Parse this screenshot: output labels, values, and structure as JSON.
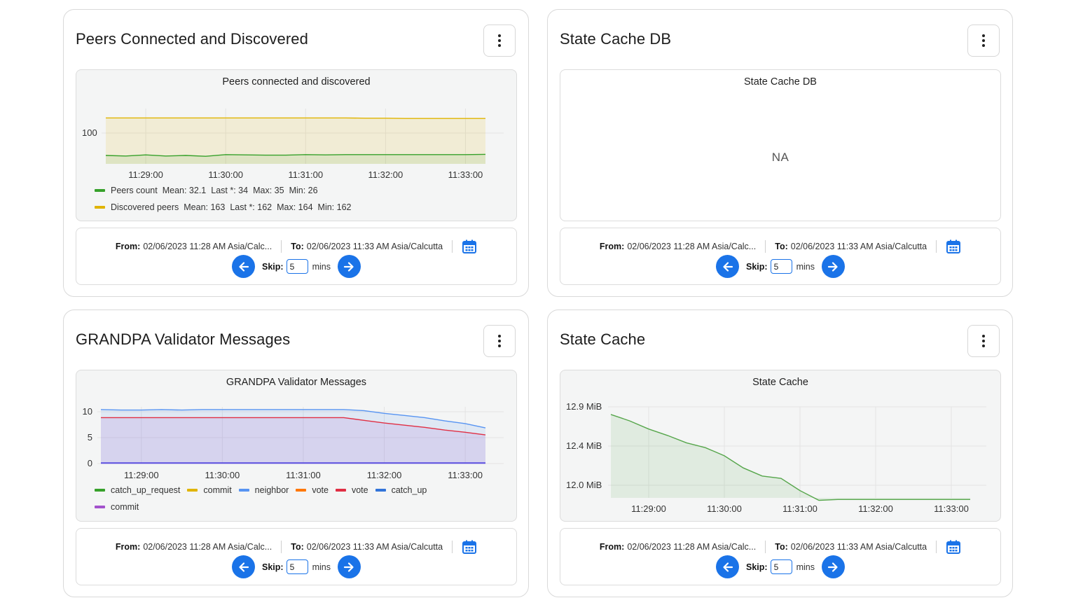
{
  "cards": [
    {
      "title": "Peers Connected and Discovered",
      "chart_title": "Peers connected and discovered",
      "legend": [
        {
          "name": "Peers count",
          "color": "#37a12b",
          "stats": [
            "Mean: 32.1",
            "Last *: 34",
            "Max: 35",
            "Min: 26"
          ]
        },
        {
          "name": "Discovered peers",
          "color": "#e0b400",
          "stats": [
            "Mean: 163",
            "Last *: 162",
            "Max: 164",
            "Min: 162"
          ]
        }
      ]
    },
    {
      "title": "State Cache DB",
      "chart_title": "State Cache DB",
      "na": "NA"
    },
    {
      "title": "GRANDPA Validator Messages",
      "chart_title": "GRANDPA Validator Messages",
      "legend": [
        {
          "name": "catch_up_request",
          "color": "#37a12b"
        },
        {
          "name": "commit",
          "color": "#e0b400"
        },
        {
          "name": "neighbor",
          "color": "#5794f2"
        },
        {
          "name": "vote",
          "color": "#ff780a"
        },
        {
          "name": "vote",
          "color": "#e02f44"
        },
        {
          "name": "catch_up",
          "color": "#3274d9"
        },
        {
          "name": "commit",
          "color": "#a352cc"
        }
      ]
    },
    {
      "title": "State Cache",
      "chart_title": "State Cache"
    }
  ],
  "time_controls": {
    "from_label": "From:",
    "from_value": "02/06/2023 11:28 AM Asia/Calc...",
    "to_label": "To:",
    "to_value": "02/06/2023 11:33 AM Asia/Calcutta",
    "skip_label": "Skip:",
    "skip_value": "5",
    "mins_label": "mins"
  },
  "chart_data": [
    {
      "type": "area",
      "title": "Peers connected and discovered",
      "x": [
        "11:28:30",
        "11:28:45",
        "11:29:00",
        "11:29:15",
        "11:29:30",
        "11:29:45",
        "11:30:00",
        "11:30:15",
        "11:30:30",
        "11:30:45",
        "11:31:00",
        "11:31:15",
        "11:31:30",
        "11:31:45",
        "11:32:00",
        "11:32:15",
        "11:32:30",
        "11:32:45",
        "11:33:00",
        "11:33:15"
      ],
      "x_ticks": [
        "11:29:00",
        "11:30:00",
        "11:31:00",
        "11:32:00",
        "11:33:00"
      ],
      "y_ticks": [
        "100"
      ],
      "ylim": [
        0,
        190
      ],
      "series": [
        {
          "name": "Peers count",
          "values": [
            30,
            28,
            32,
            28,
            30,
            27,
            33,
            32,
            31,
            31,
            33,
            32,
            33,
            33,
            33,
            33,
            33,
            33,
            33,
            34
          ]
        },
        {
          "name": "Discovered peers",
          "values": [
            164,
            164,
            164,
            164,
            164,
            164,
            164,
            164,
            164,
            164,
            164,
            164,
            164,
            163,
            163,
            162,
            162,
            162,
            162,
            162
          ]
        }
      ]
    },
    {
      "type": "area",
      "title": "GRANDPA Validator Messages",
      "x": [
        "11:28:30",
        "11:28:45",
        "11:29:00",
        "11:29:15",
        "11:29:30",
        "11:29:45",
        "11:30:00",
        "11:30:15",
        "11:30:30",
        "11:30:45",
        "11:31:00",
        "11:31:15",
        "11:31:30",
        "11:31:45",
        "11:32:00",
        "11:32:15",
        "11:32:30",
        "11:32:45",
        "11:33:00",
        "11:33:15"
      ],
      "x_ticks": [
        "11:29:00",
        "11:30:00",
        "11:31:00",
        "11:32:00",
        "11:33:00"
      ],
      "y_ticks": [
        "10",
        "5",
        "0"
      ],
      "ylim": [
        0,
        10.5
      ],
      "series": [
        {
          "name": "neighbor",
          "values": [
            10,
            9.9,
            9.9,
            10,
            9.9,
            10,
            10,
            10,
            10,
            10,
            10,
            10,
            10,
            9.8,
            9.3,
            8.9,
            8.5,
            7.9,
            7.4,
            6.6
          ]
        },
        {
          "name": "vote",
          "values": [
            8.5,
            8.5,
            8.5,
            8.5,
            8.5,
            8.5,
            8.5,
            8.5,
            8.5,
            8.5,
            8.5,
            8.5,
            8.5,
            8.0,
            7.5,
            7.1,
            6.7,
            6.2,
            5.8,
            5.3
          ]
        },
        {
          "name": "catch_up",
          "values": [
            0.1,
            0.1,
            0.1,
            0.1,
            0.1,
            0.1,
            0.1,
            0.1,
            0.1,
            0.1,
            0.1,
            0.1,
            0.1,
            0.1,
            0.1,
            0.1,
            0.1,
            0.1,
            0.1,
            0.1
          ]
        }
      ]
    },
    {
      "type": "area",
      "title": "State Cache",
      "x": [
        "11:28:30",
        "11:28:45",
        "11:29:00",
        "11:29:15",
        "11:29:30",
        "11:29:45",
        "11:30:00",
        "11:30:15",
        "11:30:30",
        "11:30:45",
        "11:31:00",
        "11:31:15",
        "11:31:30",
        "11:31:45",
        "11:32:00",
        "11:32:15",
        "11:32:30",
        "11:32:45",
        "11:33:00",
        "11:33:15"
      ],
      "x_ticks": [
        "11:29:00",
        "11:30:00",
        "11:31:00",
        "11:32:00",
        "11:33:00"
      ],
      "y_ticks": [
        "12.9 MiB",
        "12.4 MiB",
        "12.0 MiB"
      ],
      "ylim": [
        11.85,
        13.0
      ],
      "series": [
        {
          "name": "State Cache",
          "values": [
            12.88,
            12.8,
            12.7,
            12.62,
            12.53,
            12.47,
            12.37,
            12.22,
            12.12,
            12.09,
            11.94,
            11.82,
            11.83,
            11.83,
            11.83,
            11.83,
            11.83,
            11.83,
            11.83,
            11.83
          ]
        }
      ]
    }
  ]
}
